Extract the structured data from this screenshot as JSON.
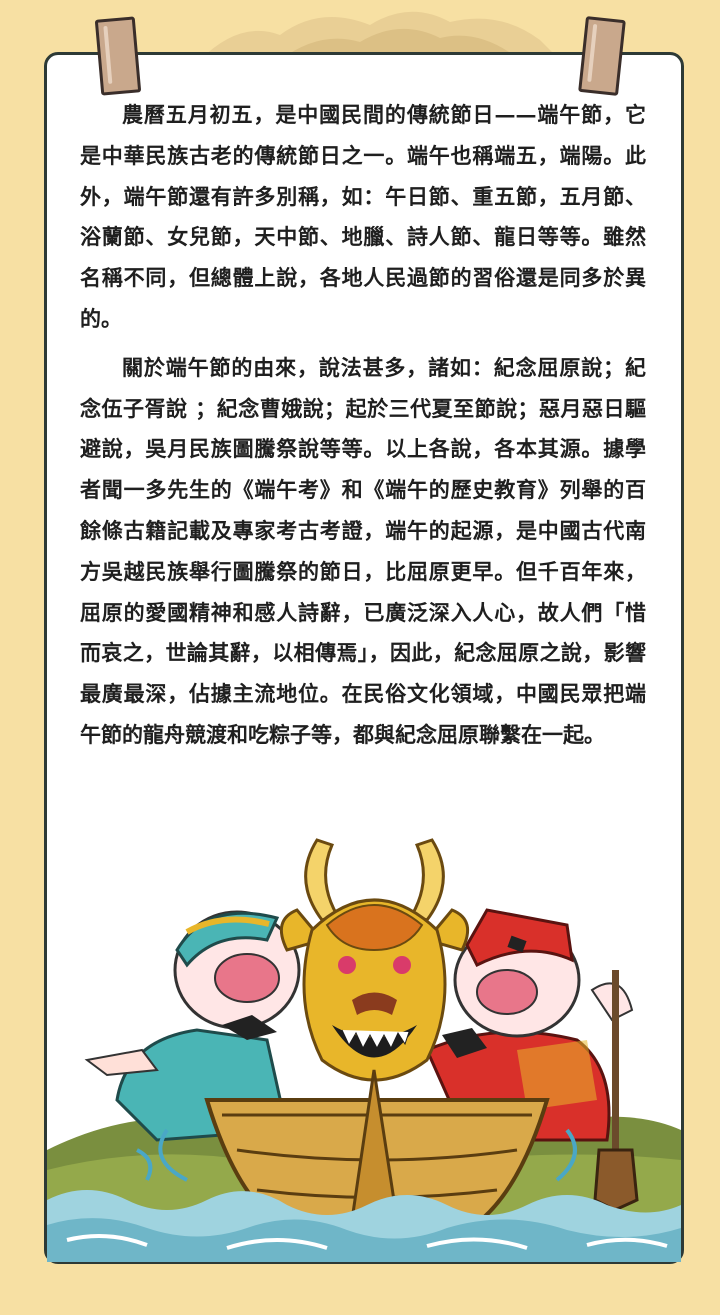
{
  "article": {
    "paragraphs": [
      "農曆五月初五，是中國民間的傳統節日——端午節，它是中華民族古老的傳統節日之一。端午也稱端五，端陽。此外，端午節還有許多別稱，如：午日節、重五節，五月節、浴蘭節、女兒節，天中節、地臘、詩人節、龍日等等。雖然名稱不同，但總體上說，各地人民過節的習俗還是同多於異的。",
      "關於端午節的由來，說法甚多，諸如：紀念屈原說；紀念伍子胥說 ；紀念曹娥說；起於三代夏至節說；惡月惡日驅避說，吳月民族圖騰祭說等等。以上各說，各本其源。據學者聞一多先生的《端午考》和《端午的歷史教育》列舉的百餘條古籍記載及專家考古考證，端午的起源，是中國古代南方吳越民族舉行圖騰祭的節日，比屈原更早。但千百年來，屈原的愛國精神和感人詩辭，已廣泛深入人心，故人們「惜而哀之，世論其辭，以相傳焉」，因此，紀念屈原之說，影響最廣最深，佔據主流地位。在民俗文化領域，中國民眾把端午節的龍舟競渡和吃粽子等，都與紀念屈原聯繫在一起。"
    ]
  },
  "colors": {
    "background": "#f7e0a3",
    "frame_border": "#2d3a36",
    "text": "#1f1f1f",
    "dragon_gold": "#e8b62a",
    "water": "#9fd3df"
  },
  "illustration": {
    "subject": "dragon-boat-with-two-rowers-icon"
  }
}
